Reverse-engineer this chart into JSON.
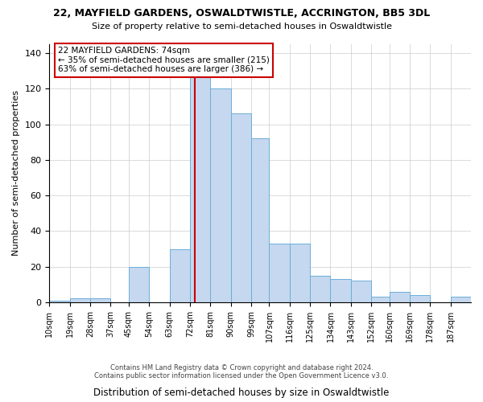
{
  "title1": "22, MAYFIELD GARDENS, OSWALDTWISTLE, ACCRINGTON, BB5 3DL",
  "title2": "Size of property relative to semi-detached houses in Oswaldtwistle",
  "xlabel": "Distribution of semi-detached houses by size in Oswaldtwistle",
  "ylabel": "Number of semi-detached properties",
  "footer1": "Contains HM Land Registry data © Crown copyright and database right 2024.",
  "footer2": "Contains public sector information licensed under the Open Government Licence v3.0.",
  "bar_values": [
    1,
    2,
    2,
    0,
    20,
    0,
    30,
    128,
    120,
    106,
    92,
    33,
    33,
    15,
    13,
    12,
    3,
    6,
    4,
    3
  ],
  "bin_edges": [
    10,
    19,
    28,
    37,
    45,
    54,
    63,
    72,
    81,
    90,
    99,
    107,
    116,
    125,
    134,
    143,
    152,
    160,
    169,
    178,
    187
  ],
  "tick_labels": [
    "10sqm",
    "19sqm",
    "28sqm",
    "37sqm",
    "45sqm",
    "54sqm",
    "63sqm",
    "72sqm",
    "81sqm",
    "90sqm",
    "99sqm",
    "107sqm",
    "116sqm",
    "125sqm",
    "134sqm",
    "143sqm",
    "152sqm",
    "160sqm",
    "169sqm",
    "178sqm",
    "187sqm"
  ],
  "bar_color": "#C5D8F0",
  "bar_edge_color": "#6BAED6",
  "vline_x": 74,
  "vline_color": "#CC0000",
  "annotation_title": "22 MAYFIELD GARDENS: 74sqm",
  "annotation_line1": "← 35% of semi-detached houses are smaller (215)",
  "annotation_line2": "63% of semi-detached houses are larger (386) →",
  "annotation_box_color": "#CC0000",
  "ylim": [
    0,
    145
  ],
  "yticks": [
    0,
    20,
    40,
    60,
    80,
    100,
    120,
    140
  ],
  "background_color": "#FFFFFF",
  "grid_color": "#CCCCCC"
}
